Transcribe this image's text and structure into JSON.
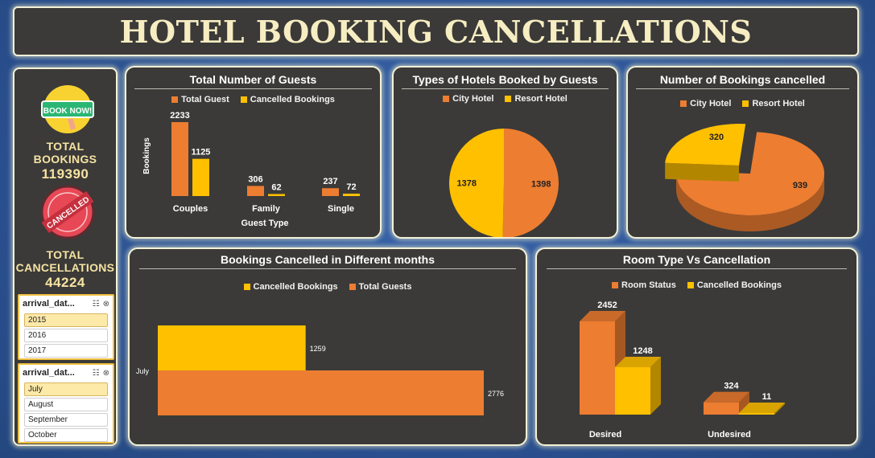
{
  "title": "HOTEL BOOKING CANCELLATIONS",
  "sidebar": {
    "book_now_label": "BOOK NOW!",
    "cancelled_stamp": "CANCELLED",
    "total_bookings_label_1": "TOTAL",
    "total_bookings_label_2": "BOOKINGS",
    "total_bookings_value": "119390",
    "total_cancellations_label_1": "TOTAL",
    "total_cancellations_label_2": "CANCELLATIONS",
    "total_cancellations_value": "44224",
    "slicer_year": {
      "title": "arrival_dat...",
      "items": [
        "2015",
        "2016",
        "2017"
      ],
      "selected": "2015"
    },
    "slicer_month": {
      "title": "arrival_dat...",
      "items": [
        "July",
        "August",
        "September",
        "October"
      ],
      "selected": "July"
    }
  },
  "colors": {
    "orange": "#ed7d31",
    "yellow": "#ffc000",
    "panel": "#3b3a38"
  },
  "chart_data": [
    {
      "id": "guests",
      "type": "bar",
      "title": "Total Number of Guests",
      "xlabel": "Guest Type",
      "ylabel": "Bookings",
      "categories": [
        "Couples",
        "Family",
        "Single"
      ],
      "series": [
        {
          "name": "Total Guest",
          "values": [
            2233,
            306,
            237
          ],
          "color": "#ed7d31"
        },
        {
          "name": "Cancelled Bookings",
          "values": [
            1125,
            62,
            72
          ],
          "color": "#ffc000"
        }
      ],
      "legend": "top",
      "grid": false
    },
    {
      "id": "hotel_types",
      "type": "pie",
      "title": "Types of Hotels Booked by Guests",
      "categories": [
        "City Hotel",
        "Resort Hotel"
      ],
      "values": [
        1398,
        1378
      ],
      "colors": [
        "#ed7d31",
        "#ffc000"
      ],
      "legend": "top"
    },
    {
      "id": "cancelled_by_hotel",
      "type": "pie",
      "title": "Number of Bookings cancelled",
      "categories": [
        "City Hotel",
        "Resort Hotel"
      ],
      "values": [
        939,
        320
      ],
      "colors": [
        "#ed7d31",
        "#ffc000"
      ],
      "legend": "top"
    },
    {
      "id": "months",
      "type": "bar",
      "orientation": "horizontal",
      "title": "Bookings Cancelled in Different months",
      "categories": [
        "July"
      ],
      "series": [
        {
          "name": "Cancelled Bookings",
          "values": [
            1259
          ],
          "color": "#ffc000"
        },
        {
          "name": "Total Guests",
          "values": [
            2776
          ],
          "color": "#ed7d31"
        }
      ],
      "legend": "top"
    },
    {
      "id": "room_type",
      "type": "bar",
      "title": "Room Type Vs Cancellation",
      "categories": [
        "Desired",
        "Undesired"
      ],
      "series": [
        {
          "name": "Room Status",
          "values": [
            2452,
            324
          ],
          "color": "#ed7d31"
        },
        {
          "name": "Cancelled Bookings",
          "values": [
            1248,
            11
          ],
          "color": "#ffc000"
        }
      ],
      "legend": "top"
    }
  ]
}
